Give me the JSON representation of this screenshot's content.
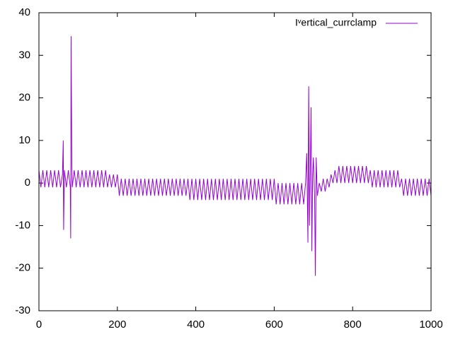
{
  "chart_data": {
    "type": "line",
    "x": [
      0,
      5,
      10,
      15,
      20,
      25,
      30,
      35,
      40,
      45,
      50,
      55,
      60,
      62,
      63,
      65,
      70,
      75,
      80,
      81,
      82,
      84,
      85,
      90,
      95,
      100,
      105,
      110,
      115,
      120,
      125,
      130,
      135,
      140,
      145,
      150,
      155,
      160,
      165,
      170,
      175,
      180,
      185,
      190,
      195,
      200,
      205,
      210,
      215,
      220,
      225,
      230,
      235,
      240,
      245,
      250,
      255,
      260,
      265,
      270,
      275,
      280,
      285,
      290,
      295,
      300,
      305,
      310,
      315,
      320,
      325,
      330,
      335,
      340,
      345,
      350,
      355,
      360,
      365,
      370,
      375,
      380,
      385,
      390,
      395,
      400,
      405,
      410,
      415,
      420,
      425,
      430,
      435,
      440,
      445,
      450,
      455,
      460,
      465,
      470,
      475,
      480,
      485,
      490,
      495,
      500,
      505,
      510,
      515,
      520,
      525,
      530,
      535,
      540,
      545,
      550,
      555,
      560,
      565,
      570,
      575,
      580,
      585,
      590,
      595,
      600,
      605,
      610,
      615,
      620,
      625,
      630,
      635,
      640,
      645,
      650,
      655,
      660,
      665,
      670,
      675,
      680,
      683,
      686,
      688,
      690,
      692,
      694,
      696,
      698,
      700,
      703,
      705,
      707,
      710,
      715,
      720,
      725,
      730,
      735,
      740,
      745,
      750,
      755,
      760,
      765,
      770,
      775,
      780,
      785,
      790,
      795,
      800,
      805,
      810,
      815,
      820,
      825,
      830,
      835,
      840,
      845,
      850,
      855,
      860,
      865,
      870,
      875,
      880,
      885,
      890,
      895,
      900,
      905,
      910,
      915,
      920,
      925,
      930,
      935,
      940,
      945,
      950,
      955,
      960,
      965,
      970,
      975,
      980,
      985,
      990,
      995,
      1000
    ],
    "series": [
      {
        "name": "Iᵛertical_currclamp",
        "color": "#9400d3",
        "values": [
          3,
          -1,
          3,
          -1,
          3,
          -1,
          3,
          -1,
          3,
          -1,
          3,
          -1,
          2,
          10,
          -11,
          3,
          -1,
          3,
          -1,
          -13,
          34.5,
          4,
          -1,
          3,
          -1,
          3,
          -1,
          3,
          -1,
          3,
          -1,
          3,
          -1,
          3,
          -1,
          3,
          -1,
          3,
          -1,
          3,
          -1,
          2,
          -1,
          2,
          -1,
          2,
          -3,
          1,
          -3,
          1,
          -3,
          1,
          -3,
          1,
          -3,
          1,
          -3,
          1,
          -3,
          1,
          -3,
          1,
          -3,
          1,
          -3,
          1,
          -3,
          1,
          -3,
          1,
          -3,
          1,
          -3,
          1,
          -3,
          1,
          -3,
          1,
          -3,
          1,
          -3,
          1,
          -4,
          1,
          -4,
          1,
          -4,
          1,
          -4,
          1,
          -4,
          1,
          -4,
          1,
          -4,
          1,
          -4,
          1,
          -4,
          1,
          -4,
          1,
          -4,
          1,
          -4,
          1,
          -4,
          1,
          -4,
          1,
          -4,
          1,
          -4,
          1,
          -4,
          1,
          -4,
          1,
          -4,
          1,
          -4,
          1,
          -4,
          1,
          -4,
          1,
          -5,
          0,
          -5,
          0,
          -5,
          0,
          -5,
          0,
          -5,
          0,
          -5,
          0,
          -5,
          0,
          -5,
          0,
          7,
          -14,
          22.7,
          -10,
          3,
          17.8,
          -16,
          2,
          6,
          -3,
          -21.8,
          6,
          -3,
          0,
          -2,
          1,
          -2,
          1,
          -1,
          2,
          0,
          3,
          0,
          4,
          0,
          4,
          0,
          4,
          0,
          4,
          0,
          4,
          0,
          4,
          0,
          4,
          0,
          4,
          0,
          3,
          -1,
          3,
          -1,
          3,
          -1,
          3,
          -1,
          3,
          -1,
          3,
          -1,
          3,
          -1,
          3,
          -1,
          1,
          -3,
          1,
          -3,
          1,
          -3,
          1,
          -3,
          1,
          -3,
          1,
          -3,
          1,
          -3,
          1,
          -3
        ]
      }
    ],
    "xlim": [
      0,
      1000
    ],
    "xticks": [
      0,
      200,
      400,
      600,
      800,
      1000
    ],
    "ylim": [
      -30,
      40
    ],
    "yticks": [
      -30,
      -20,
      -10,
      0,
      10,
      20,
      30,
      40
    ],
    "grid": false,
    "legend": "top-right"
  }
}
